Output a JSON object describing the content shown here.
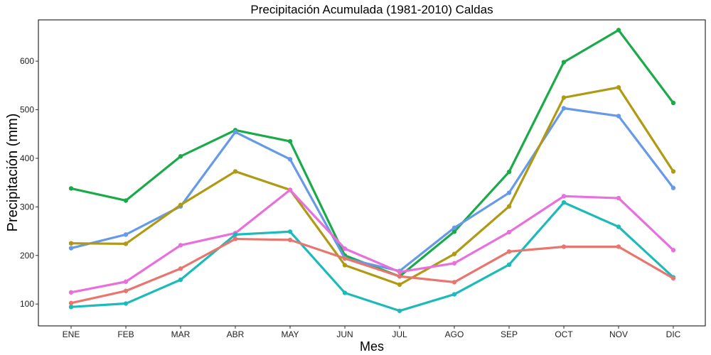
{
  "chart_data": {
    "type": "line",
    "title": "Precipitación Acumulada (1981-2010)  Caldas",
    "xlabel": "Mes",
    "ylabel": "Precipitación  (mm)",
    "categories": [
      "ENE",
      "FEB",
      "MAR",
      "ABR",
      "MAY",
      "JUN",
      "JUL",
      "AGO",
      "SEP",
      "OCT",
      "NOV",
      "DIC"
    ],
    "ylim": [
      55,
      685
    ],
    "yticks": [
      100,
      200,
      300,
      400,
      500,
      600
    ],
    "grid": false,
    "legend": "none",
    "series": [
      {
        "color": "#1BAA4A",
        "values": [
          338,
          313,
          404,
          458,
          435,
          200,
          157,
          249,
          372,
          598,
          664,
          514
        ]
      },
      {
        "color": "#6699E8",
        "values": [
          215,
          243,
          301,
          454,
          398,
          194,
          168,
          257,
          329,
          503,
          487,
          339
        ]
      },
      {
        "color": "#B09A14",
        "values": [
          225,
          224,
          304,
          373,
          335,
          180,
          140,
          203,
          301,
          525,
          546,
          373
        ]
      },
      {
        "color": "#E86FDC",
        "values": [
          124,
          146,
          221,
          246,
          335,
          214,
          166,
          184,
          248,
          322,
          318,
          211
        ]
      },
      {
        "color": "#1DBABA",
        "values": [
          94,
          101,
          150,
          243,
          249,
          123,
          86,
          120,
          181,
          309,
          259,
          155
        ]
      },
      {
        "color": "#E8766E",
        "values": [
          102,
          127,
          173,
          234,
          232,
          194,
          157,
          145,
          208,
          218,
          218,
          153
        ]
      }
    ]
  }
}
